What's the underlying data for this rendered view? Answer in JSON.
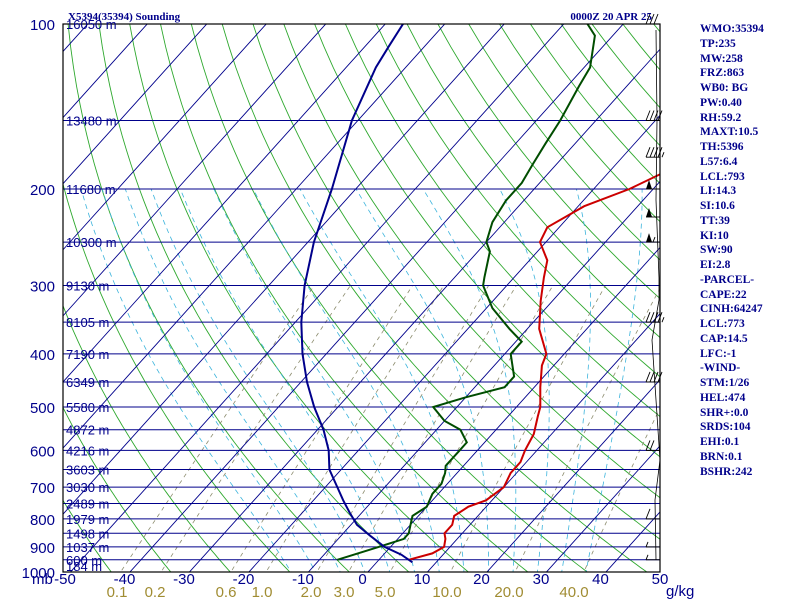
{
  "chart_data": {
    "type": "skew-t",
    "title_left": "X5394(35394) Sounding",
    "title_right": "0000Z 20 APR 25",
    "unit_left": "mb",
    "unit_right": "g/kg",
    "y_axis": {
      "scale": "log",
      "range_mb": [
        1000,
        100
      ],
      "tick_labels": [
        "100",
        "200",
        "300",
        "400",
        "500",
        "600",
        "700",
        "800",
        "900",
        "1000"
      ]
    },
    "x_axis": {
      "range_c": [
        -50,
        50
      ],
      "tick_labels": [
        "-50",
        "-40",
        "-30",
        "-20",
        "-10",
        "0",
        "10",
        "20",
        "30",
        "40",
        "50"
      ]
    },
    "mixing_ratio_labels": [
      "0.1",
      "0.2",
      "0.6",
      "1.0",
      "2.0",
      "3.0",
      "5.0",
      "10.0",
      "20.0",
      "40.0"
    ],
    "height_labels": [
      {
        "p": 100,
        "text": "16050 m"
      },
      {
        "p": 150,
        "text": "13480 m"
      },
      {
        "p": 200,
        "text": "11680 m"
      },
      {
        "p": 250,
        "text": "10300 m"
      },
      {
        "p": 300,
        "text": "9130 m"
      },
      {
        "p": 350,
        "text": "8105 m"
      },
      {
        "p": 400,
        "text": "7190 m"
      },
      {
        "p": 450,
        "text": "6349 m"
      },
      {
        "p": 500,
        "text": "5580 m"
      },
      {
        "p": 550,
        "text": "4872 m"
      },
      {
        "p": 600,
        "text": "4216 m"
      },
      {
        "p": 650,
        "text": "3603 m"
      },
      {
        "p": 700,
        "text": "3030 m"
      },
      {
        "p": 750,
        "text": "2489 m"
      },
      {
        "p": 800,
        "text": "1979 m"
      },
      {
        "p": 850,
        "text": "1498 m"
      },
      {
        "p": 900,
        "text": "1037 m"
      },
      {
        "p": 950,
        "text": "600 m"
      },
      {
        "p": 975,
        "text": "184 m"
      }
    ],
    "series": [
      {
        "key": "temperature",
        "color": "#cc0000",
        "points": [
          [
            950,
            5
          ],
          [
            925,
            8
          ],
          [
            900,
            9
          ],
          [
            870,
            8
          ],
          [
            850,
            7
          ],
          [
            820,
            7
          ],
          [
            790,
            6
          ],
          [
            760,
            7
          ],
          [
            740,
            9
          ],
          [
            700,
            10
          ],
          [
            660,
            9
          ],
          [
            630,
            9
          ],
          [
            600,
            8
          ],
          [
            560,
            7
          ],
          [
            520,
            5
          ],
          [
            500,
            4
          ],
          [
            460,
            1
          ],
          [
            420,
            -2
          ],
          [
            400,
            -3
          ],
          [
            360,
            -8
          ],
          [
            320,
            -12
          ],
          [
            290,
            -15
          ],
          [
            270,
            -17
          ],
          [
            250,
            -21
          ],
          [
            235,
            -22
          ],
          [
            215,
            -19
          ],
          [
            200,
            -14
          ],
          [
            180,
            -9
          ],
          [
            165,
            -6
          ],
          [
            150,
            -3
          ],
          [
            130,
            -2
          ],
          [
            110,
            1
          ],
          [
            100,
            4
          ]
        ]
      },
      {
        "key": "dewpoint",
        "color": "#004d00",
        "points": [
          [
            950,
            -7
          ],
          [
            900,
            -2
          ],
          [
            870,
            1
          ],
          [
            850,
            1
          ],
          [
            820,
            0
          ],
          [
            790,
            -1
          ],
          [
            760,
            0
          ],
          [
            720,
            -1
          ],
          [
            690,
            -1
          ],
          [
            660,
            -2
          ],
          [
            640,
            -3
          ],
          [
            600,
            -3
          ],
          [
            580,
            -3
          ],
          [
            550,
            -6
          ],
          [
            530,
            -10
          ],
          [
            500,
            -14
          ],
          [
            480,
            -10
          ],
          [
            460,
            -5
          ],
          [
            440,
            -5
          ],
          [
            400,
            -9
          ],
          [
            380,
            -9
          ],
          [
            360,
            -13
          ],
          [
            330,
            -19
          ],
          [
            300,
            -24
          ],
          [
            290,
            -25
          ],
          [
            260,
            -28
          ],
          [
            250,
            -30
          ],
          [
            230,
            -32
          ],
          [
            210,
            -33
          ],
          [
            195,
            -33
          ],
          [
            180,
            -34
          ],
          [
            165,
            -35
          ],
          [
            150,
            -36
          ],
          [
            130,
            -38
          ],
          [
            120,
            -39
          ],
          [
            105,
            -43
          ],
          [
            100,
            -46
          ]
        ]
      },
      {
        "key": "parcel",
        "color": "#00008b",
        "points": [
          [
            960,
            6
          ],
          [
            930,
            3
          ],
          [
            900,
            -1
          ],
          [
            860,
            -5
          ],
          [
            820,
            -9
          ],
          [
            780,
            -12
          ],
          [
            740,
            -15
          ],
          [
            700,
            -18
          ],
          [
            650,
            -22
          ],
          [
            600,
            -25
          ],
          [
            550,
            -29
          ],
          [
            500,
            -34
          ],
          [
            450,
            -39
          ],
          [
            400,
            -44
          ],
          [
            350,
            -49
          ],
          [
            300,
            -54
          ],
          [
            250,
            -59
          ],
          [
            200,
            -64
          ],
          [
            150,
            -71
          ],
          [
            120,
            -75
          ],
          [
            110,
            -76
          ],
          [
            100,
            -77
          ]
        ]
      }
    ],
    "wind_barbs": [
      {
        "p": 100,
        "speed": 30
      },
      {
        "p": 150,
        "speed": 40
      },
      {
        "p": 175,
        "speed": 45
      },
      {
        "p": 200,
        "speed": 50
      },
      {
        "p": 225,
        "speed": 50
      },
      {
        "p": 250,
        "speed": 55
      },
      {
        "p": 350,
        "speed": 45
      },
      {
        "p": 450,
        "speed": 40
      },
      {
        "p": 600,
        "speed": 20
      },
      {
        "p": 800,
        "speed": 10
      },
      {
        "p": 900,
        "speed": 5
      },
      {
        "p": 950,
        "speed": 5
      }
    ]
  },
  "indices": [
    "WMO:35394",
    "TP:235",
    "MW:258",
    "FRZ:863",
    "WB0: BG",
    "PW:0.40",
    "RH:59.2",
    "MAXT:10.5",
    "TH:5396",
    "L57:6.4",
    "LCL:793",
    "LI:14.3",
    "SI:10.6",
    "TT:39",
    "KI:10",
    "SW:90",
    "EI:2.8",
    "-PARCEL-",
    "CAPE:22",
    "CINH:64247",
    "LCL:773",
    "CAP:14.5",
    "LFC:-1",
    "-WIND-",
    "STM:1/26",
    "HEL:474",
    "SHR+:0.0",
    "SRDS:104",
    "EHI:0.1",
    "BRN:0.1",
    "BSHR:242"
  ],
  "colors": {
    "isobar": "#00008b",
    "isotherm": "#00008b",
    "dry_adiabat": "#2ea82e",
    "moist_adiabat": "#3cb4dc",
    "mixing_ratio": "#8c8c6e",
    "mixing_label": "#a08c32",
    "axis_text": "#00008b",
    "frame": "#000000"
  }
}
